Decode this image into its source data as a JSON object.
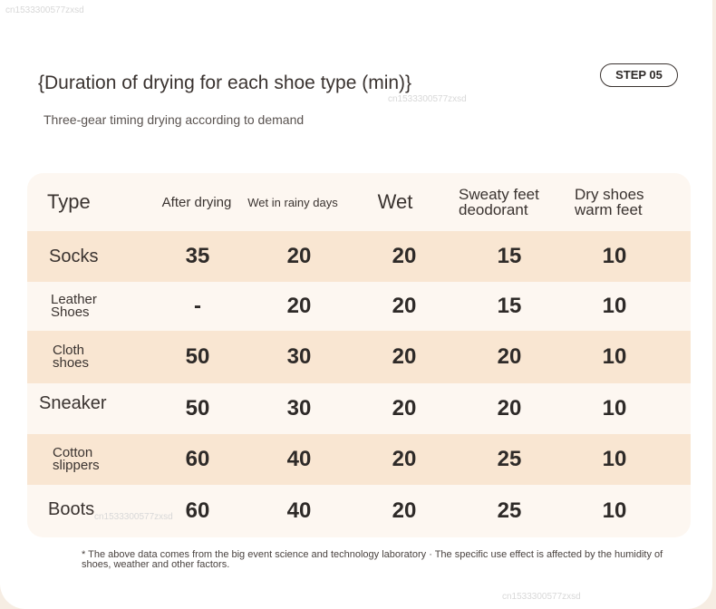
{
  "watermark": "cn1533300577zxsd",
  "title": "{Duration of drying for each shoe type (min)}",
  "subtitle": "Three-gear timing drying according to demand",
  "step_badge": "STEP 05",
  "table": {
    "headers": [
      "Type",
      "After drying",
      "Wet in rainy days",
      "Wet",
      "Sweaty feet deodorant",
      "Dry shoes warm feet"
    ],
    "rows": [
      {
        "type": "Socks",
        "values": [
          "35",
          "20",
          "20",
          "15",
          "10"
        ]
      },
      {
        "type": "Leather Shoes",
        "values": [
          "-",
          "20",
          "20",
          "15",
          "10"
        ]
      },
      {
        "type": "Cloth shoes",
        "values": [
          "50",
          "30",
          "20",
          "20",
          "10"
        ]
      },
      {
        "type": "Sneaker",
        "values": [
          "50",
          "30",
          "20",
          "20",
          "10"
        ]
      },
      {
        "type": "Cotton slippers",
        "values": [
          "60",
          "40",
          "20",
          "25",
          "10"
        ]
      },
      {
        "type": "Boots",
        "values": [
          "60",
          "40",
          "20",
          "25",
          "10"
        ]
      }
    ]
  },
  "footnote": "* The above data comes from the big event science and technology laboratory · The specific use effect is affected by the humidity of shoes, weather and other factors."
}
